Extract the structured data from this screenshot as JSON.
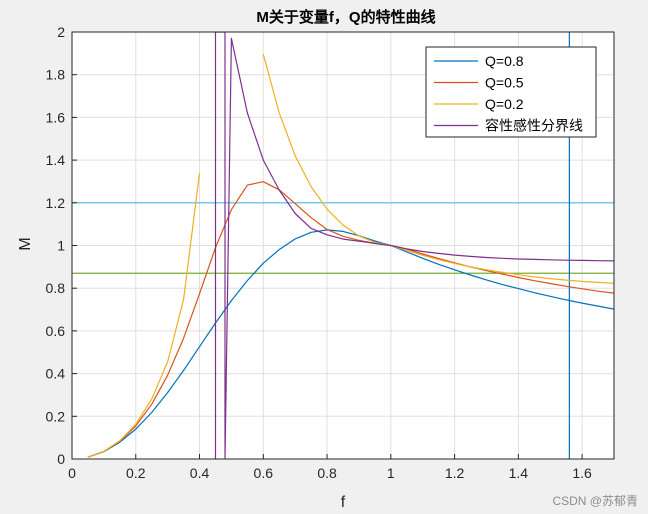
{
  "chart_data": {
    "type": "line",
    "title": "M关于变量f，Q的特性曲线",
    "xlabel": "f",
    "ylabel": "M",
    "xlim": [
      0,
      1.7
    ],
    "ylim": [
      0,
      2
    ],
    "x_ticks": [
      "0",
      "0.2",
      "0.4",
      "0.6",
      "0.8",
      "1",
      "1.2",
      "1.4",
      "1.6"
    ],
    "y_ticks": [
      "0",
      "0.2",
      "0.4",
      "0.6",
      "0.8",
      "1",
      "1.2",
      "1.4",
      "1.6",
      "1.8",
      "2"
    ],
    "grid": true,
    "legend_position": "top-right",
    "series": [
      {
        "name": "Q=0.8",
        "color": "#0072BD",
        "x": [
          0.05,
          0.1,
          0.15,
          0.2,
          0.25,
          0.3,
          0.35,
          0.4,
          0.45,
          0.5,
          0.55,
          0.6,
          0.65,
          0.7,
          0.75,
          0.8,
          0.85,
          0.9,
          0.95,
          1.0,
          1.05,
          1.1,
          1.15,
          1.2,
          1.25,
          1.3,
          1.35,
          1.4,
          1.45,
          1.5,
          1.55,
          1.6,
          1.65,
          1.7
        ],
        "y": [
          0.0086,
          0.0347,
          0.0786,
          0.14,
          0.218,
          0.311,
          0.415,
          0.526,
          0.637,
          0.742,
          0.836,
          0.917,
          0.981,
          1.031,
          1.062,
          1.073,
          1.066,
          1.046,
          1.021,
          1.0,
          0.97,
          0.94,
          0.912,
          0.886,
          0.862,
          0.839,
          0.817,
          0.798,
          0.779,
          0.762,
          0.745,
          0.73,
          0.716,
          0.702
        ]
      },
      {
        "name": "Q=0.5",
        "color": "#D95319",
        "x": [
          0.05,
          0.1,
          0.15,
          0.2,
          0.25,
          0.3,
          0.35,
          0.4,
          0.45,
          0.5,
          0.55,
          0.6,
          0.65,
          0.7,
          0.75,
          0.8,
          0.85,
          0.9,
          0.95,
          1.0,
          1.05,
          1.1,
          1.15,
          1.2,
          1.25,
          1.3,
          1.35,
          1.4,
          1.45,
          1.5,
          1.55,
          1.6,
          1.65,
          1.7
        ],
        "y": [
          0.0087,
          0.0357,
          0.0829,
          0.155,
          0.256,
          0.392,
          0.566,
          0.774,
          0.99,
          1.168,
          1.283,
          1.299,
          1.261,
          1.196,
          1.13,
          1.075,
          1.043,
          1.024,
          1.01,
          1.0,
          0.983,
          0.96,
          0.939,
          0.919,
          0.9,
          0.882,
          0.866,
          0.85,
          0.835,
          0.822,
          0.809,
          0.797,
          0.786,
          0.777
        ]
      },
      {
        "name": "Q=0.2",
        "color": "#EDB120",
        "x": [
          0.05,
          0.1,
          0.15,
          0.2,
          0.25,
          0.3,
          0.35,
          0.4,
          0.6,
          0.65,
          0.7,
          0.75,
          0.8,
          0.85,
          0.9,
          0.95,
          1.0,
          1.05,
          1.1,
          1.15,
          1.2,
          1.25,
          1.3,
          1.35,
          1.4,
          1.45,
          1.5,
          1.55,
          1.6,
          1.65,
          1.7
        ],
        "y": [
          0.0088,
          0.0363,
          0.0854,
          0.163,
          0.28,
          0.455,
          0.748,
          1.338,
          1.896,
          1.621,
          1.42,
          1.276,
          1.17,
          1.096,
          1.045,
          1.015,
          1.0,
          0.977,
          0.954,
          0.934,
          0.916,
          0.9,
          0.886,
          0.874,
          0.863,
          0.853,
          0.845,
          0.838,
          0.832,
          0.827,
          0.823
        ]
      },
      {
        "name": "容性感性分界线",
        "color": "#7E2F8E",
        "x": [
          0.0,
          0.45,
          0.45,
          0.48,
          0.48,
          0.5,
          0.55,
          0.6,
          0.65,
          0.7,
          0.75,
          0.8,
          0.85,
          0.9,
          0.95,
          1.0,
          1.05,
          1.1,
          1.15,
          1.2,
          1.25,
          1.3,
          1.35,
          1.4,
          1.45,
          1.5,
          1.55,
          1.6,
          1.65,
          1.7
        ],
        "y": [
          0.0,
          0.0,
          2.0,
          2.0,
          0.0,
          1.97,
          1.62,
          1.4,
          1.26,
          1.15,
          1.08,
          1.05,
          1.03,
          1.02,
          1.01,
          1.0,
          0.984,
          0.972,
          0.963,
          0.955,
          0.949,
          0.944,
          0.94,
          0.937,
          0.935,
          0.933,
          0.931,
          0.93,
          0.929,
          0.928
        ]
      }
    ],
    "reference_lines": [
      {
        "orientation": "horizontal",
        "value": 1.2,
        "color": "#4DBEEE"
      },
      {
        "orientation": "horizontal",
        "value": 0.87,
        "color": "#77AC30"
      },
      {
        "orientation": "vertical",
        "value": 1.56,
        "color": "#0072BD"
      }
    ]
  },
  "watermark": "CSDN @苏郁青"
}
